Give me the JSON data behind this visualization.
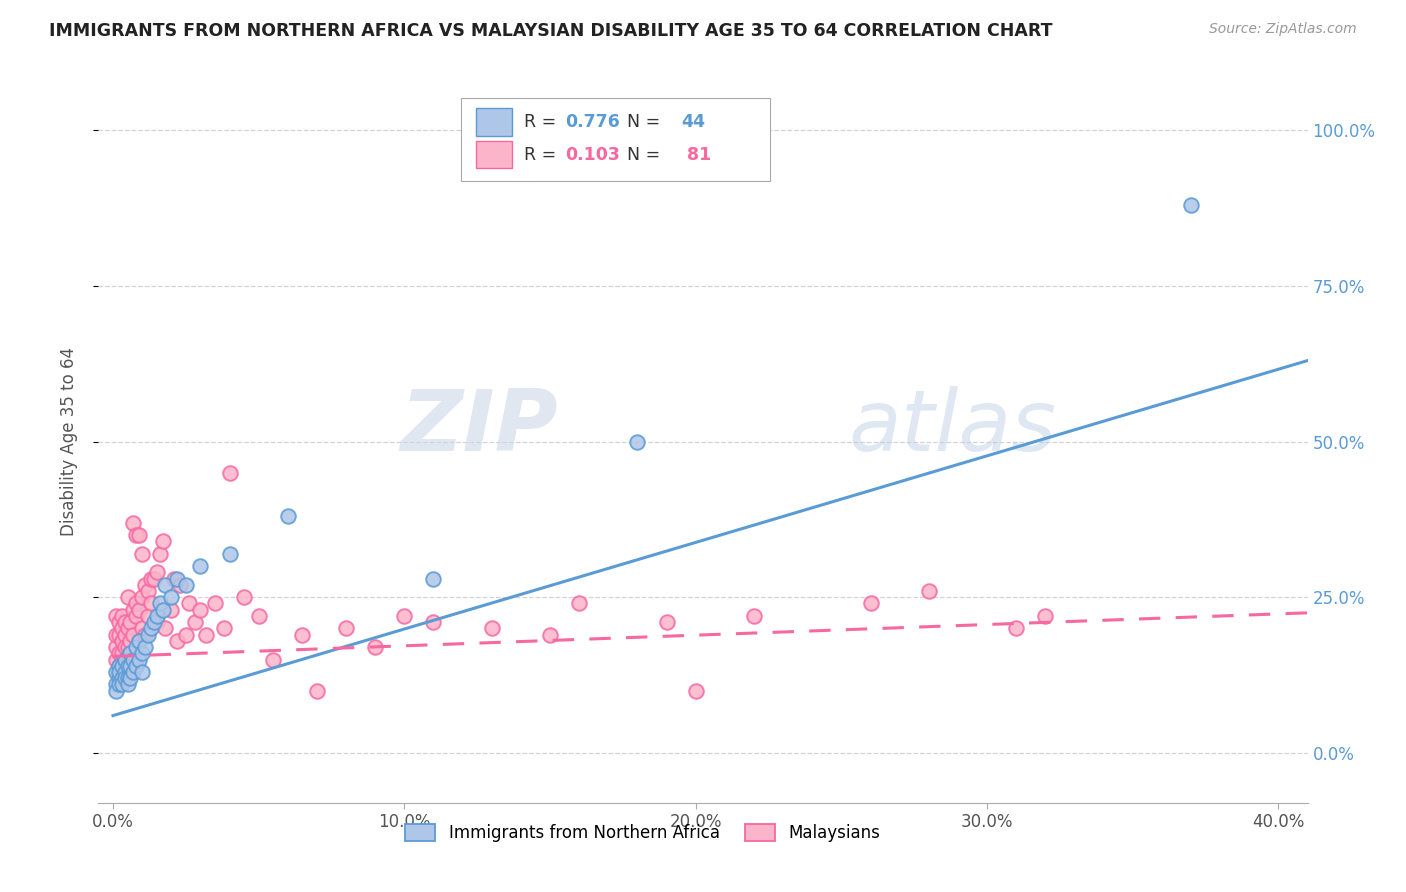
{
  "title": "IMMIGRANTS FROM NORTHERN AFRICA VS MALAYSIAN DISABILITY AGE 35 TO 64 CORRELATION CHART",
  "source": "Source: ZipAtlas.com",
  "xlabel_ticks": [
    "0.0%",
    "10.0%",
    "20.0%",
    "30.0%",
    "40.0%"
  ],
  "xlabel_tick_vals": [
    0.0,
    0.1,
    0.2,
    0.3,
    0.4
  ],
  "ylabel_ticks": [
    "0.0%",
    "25.0%",
    "50.0%",
    "75.0%",
    "100.0%"
  ],
  "ylabel_tick_vals": [
    0.0,
    0.25,
    0.5,
    0.75,
    1.0
  ],
  "xlim": [
    -0.005,
    0.41
  ],
  "ylim": [
    -0.08,
    1.08
  ],
  "ylabel": "Disability Age 35 to 64",
  "watermark_zip": "ZIP",
  "watermark_atlas": "atlas",
  "legend_label1": "Immigrants from Northern Africa",
  "legend_label2": "Malaysians",
  "blue_scatter_x": [
    0.001,
    0.001,
    0.001,
    0.002,
    0.002,
    0.002,
    0.002,
    0.003,
    0.003,
    0.003,
    0.004,
    0.004,
    0.004,
    0.005,
    0.005,
    0.005,
    0.006,
    0.006,
    0.006,
    0.007,
    0.007,
    0.008,
    0.008,
    0.009,
    0.009,
    0.01,
    0.01,
    0.011,
    0.012,
    0.013,
    0.014,
    0.015,
    0.016,
    0.017,
    0.018,
    0.02,
    0.022,
    0.025,
    0.03,
    0.04,
    0.06,
    0.11,
    0.18,
    0.37
  ],
  "blue_scatter_y": [
    0.11,
    0.13,
    0.1,
    0.12,
    0.14,
    0.11,
    0.13,
    0.12,
    0.14,
    0.11,
    0.13,
    0.12,
    0.15,
    0.12,
    0.14,
    0.11,
    0.14,
    0.12,
    0.16,
    0.15,
    0.13,
    0.14,
    0.17,
    0.15,
    0.18,
    0.16,
    0.13,
    0.17,
    0.19,
    0.2,
    0.21,
    0.22,
    0.24,
    0.23,
    0.27,
    0.25,
    0.28,
    0.27,
    0.3,
    0.32,
    0.38,
    0.28,
    0.5,
    0.88
  ],
  "pink_scatter_x": [
    0.001,
    0.001,
    0.001,
    0.001,
    0.002,
    0.002,
    0.002,
    0.002,
    0.002,
    0.003,
    0.003,
    0.003,
    0.003,
    0.003,
    0.004,
    0.004,
    0.004,
    0.004,
    0.005,
    0.005,
    0.005,
    0.005,
    0.006,
    0.006,
    0.006,
    0.007,
    0.007,
    0.007,
    0.007,
    0.008,
    0.008,
    0.008,
    0.009,
    0.009,
    0.009,
    0.01,
    0.01,
    0.01,
    0.011,
    0.011,
    0.012,
    0.012,
    0.013,
    0.013,
    0.014,
    0.015,
    0.015,
    0.016,
    0.017,
    0.018,
    0.02,
    0.021,
    0.022,
    0.023,
    0.025,
    0.026,
    0.028,
    0.03,
    0.032,
    0.035,
    0.038,
    0.04,
    0.045,
    0.05,
    0.055,
    0.065,
    0.07,
    0.08,
    0.09,
    0.1,
    0.11,
    0.13,
    0.15,
    0.16,
    0.19,
    0.2,
    0.22,
    0.26,
    0.28,
    0.31,
    0.32
  ],
  "pink_scatter_y": [
    0.15,
    0.17,
    0.19,
    0.22,
    0.13,
    0.16,
    0.19,
    0.21,
    0.14,
    0.16,
    0.18,
    0.14,
    0.2,
    0.22,
    0.15,
    0.19,
    0.21,
    0.17,
    0.14,
    0.2,
    0.17,
    0.25,
    0.16,
    0.21,
    0.18,
    0.19,
    0.15,
    0.23,
    0.37,
    0.22,
    0.24,
    0.35,
    0.18,
    0.23,
    0.35,
    0.2,
    0.25,
    0.32,
    0.19,
    0.27,
    0.22,
    0.26,
    0.28,
    0.24,
    0.28,
    0.21,
    0.29,
    0.32,
    0.34,
    0.2,
    0.23,
    0.28,
    0.18,
    0.27,
    0.19,
    0.24,
    0.21,
    0.23,
    0.19,
    0.24,
    0.2,
    0.45,
    0.25,
    0.22,
    0.15,
    0.19,
    0.1,
    0.2,
    0.17,
    0.22,
    0.21,
    0.2,
    0.19,
    0.24,
    0.21,
    0.1,
    0.22,
    0.24,
    0.26,
    0.2,
    0.22
  ],
  "blue_line_x0": 0.0,
  "blue_line_x1": 0.41,
  "blue_line_y0": 0.06,
  "blue_line_y1": 0.63,
  "pink_line_x0": 0.0,
  "pink_line_x1": 0.41,
  "pink_line_y0": 0.155,
  "pink_line_y1": 0.225,
  "blue_color": "#5b9bd5",
  "pink_color": "#f768a1",
  "blue_face": "#aec6e8",
  "pink_face": "#fbb4c9",
  "grid_color": "#c8c8c8",
  "background_color": "#ffffff",
  "right_axis_color": "#5b9bd5",
  "r_blue": "0.776",
  "n_blue": "44",
  "r_pink": "0.103",
  "n_pink": "81"
}
